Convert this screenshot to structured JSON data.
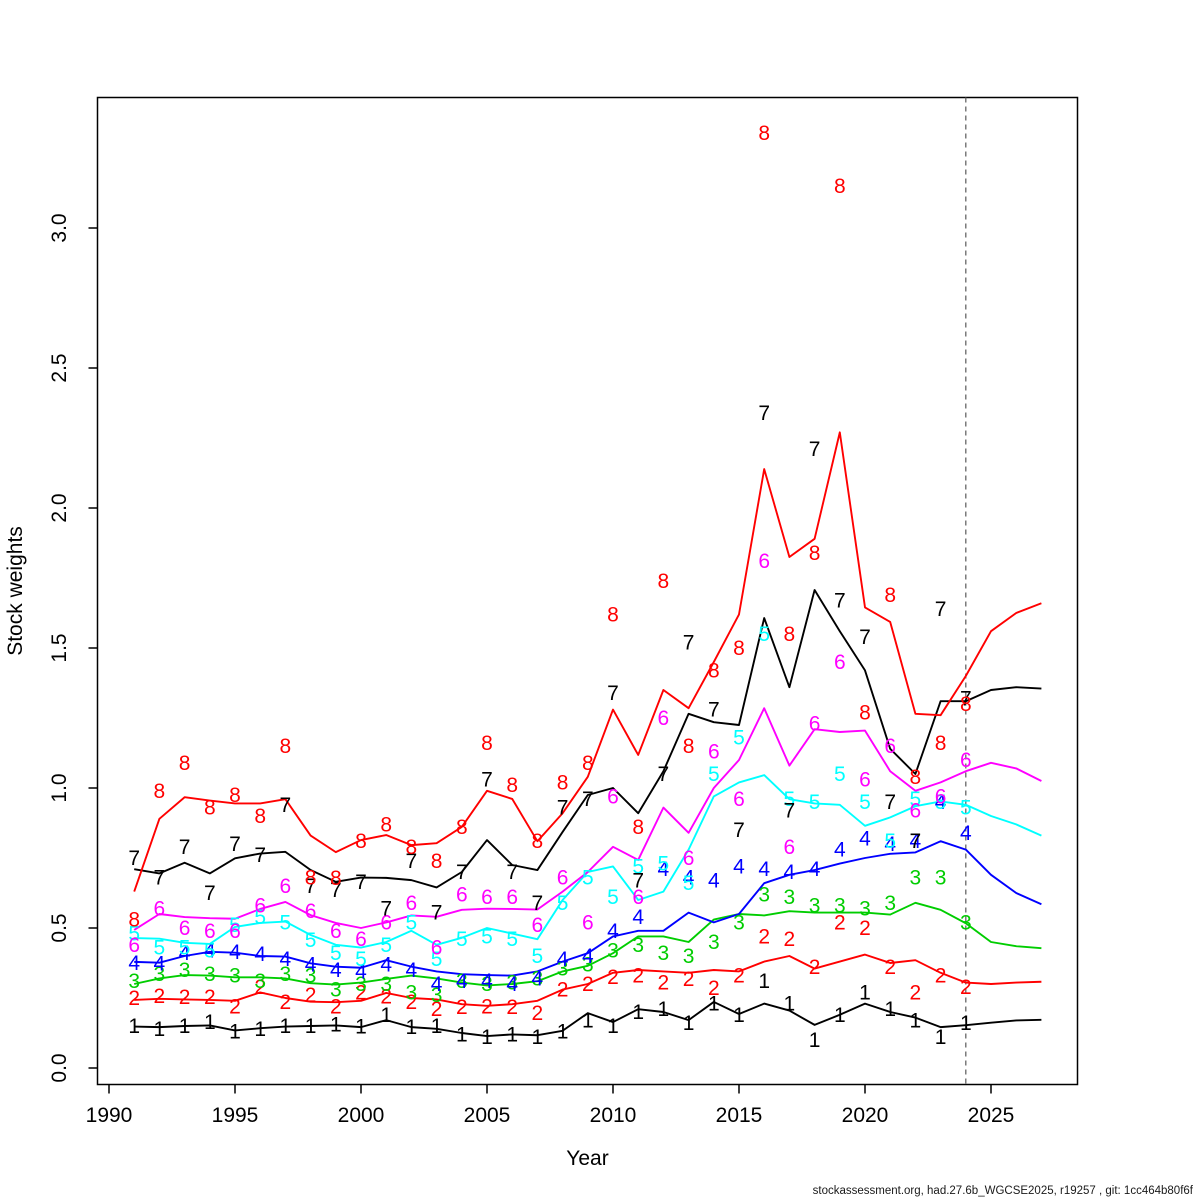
{
  "chart_data": {
    "type": "line",
    "title": "",
    "xlabel": "Year",
    "ylabel": "Stock weights",
    "x_ticks": [
      1990,
      1995,
      2000,
      2005,
      2010,
      2015,
      2020,
      2025
    ],
    "y_ticks": [
      "0.0",
      "0.5",
      "1.0",
      "1.5",
      "2.0",
      "2.5",
      "3.0"
    ],
    "xlim": [
      1989.5,
      2028.5
    ],
    "ylim": [
      -0.06,
      3.47
    ],
    "grid": false,
    "legend_position": "none",
    "forecast_divider_year": 2024,
    "divider_color": "#666666",
    "years": [
      1991,
      1992,
      1993,
      1994,
      1995,
      1996,
      1997,
      1998,
      1999,
      2000,
      2001,
      2002,
      2003,
      2004,
      2005,
      2006,
      2007,
      2008,
      2009,
      2010,
      2011,
      2012,
      2013,
      2014,
      2015,
      2016,
      2017,
      2018,
      2019,
      2020,
      2021,
      2022,
      2023,
      2024,
      2025,
      2026,
      2027
    ],
    "obs_years": [
      1991,
      1992,
      1993,
      1994,
      1995,
      1996,
      1997,
      1998,
      1999,
      2000,
      2001,
      2002,
      2003,
      2004,
      2005,
      2006,
      2007,
      2008,
      2009,
      2010,
      2011,
      2012,
      2013,
      2014,
      2015,
      2016,
      2017,
      2018,
      2019,
      2020,
      2021,
      2022,
      2023,
      2024
    ],
    "series": [
      {
        "name": "age-1",
        "label": "1",
        "color": "#000000",
        "line": [
          0.148,
          0.146,
          0.15,
          0.152,
          0.134,
          0.142,
          0.148,
          0.15,
          0.152,
          0.146,
          0.171,
          0.146,
          0.14,
          0.125,
          0.114,
          0.12,
          0.117,
          0.133,
          0.196,
          0.164,
          0.21,
          0.2,
          0.171,
          0.236,
          0.193,
          0.23,
          0.205,
          0.154,
          0.19,
          0.23,
          0.2,
          0.18,
          0.146,
          0.153,
          0.162,
          0.17,
          0.172
        ],
        "obs": [
          0.15,
          0.14,
          0.15,
          0.165,
          0.13,
          0.14,
          0.15,
          0.15,
          0.155,
          0.148,
          0.19,
          0.146,
          0.15,
          0.12,
          0.11,
          0.12,
          0.11,
          0.13,
          0.17,
          0.15,
          0.2,
          0.21,
          0.16,
          0.23,
          0.19,
          0.31,
          0.23,
          0.1,
          0.19,
          0.27,
          0.21,
          0.17,
          0.11,
          0.16
        ]
      },
      {
        "name": "age-2",
        "label": "2",
        "color": "#FF0000",
        "line": [
          0.243,
          0.247,
          0.245,
          0.243,
          0.24,
          0.27,
          0.25,
          0.237,
          0.235,
          0.24,
          0.268,
          0.25,
          0.245,
          0.228,
          0.222,
          0.228,
          0.24,
          0.28,
          0.3,
          0.34,
          0.35,
          0.345,
          0.34,
          0.35,
          0.345,
          0.38,
          0.4,
          0.355,
          0.38,
          0.405,
          0.375,
          0.385,
          0.34,
          0.305,
          0.3,
          0.305,
          0.308
        ],
        "obs": [
          0.25,
          0.257,
          0.254,
          0.254,
          0.22,
          0.29,
          0.236,
          0.26,
          0.22,
          0.27,
          0.256,
          0.235,
          0.21,
          0.218,
          0.22,
          0.217,
          0.196,
          0.28,
          0.3,
          0.325,
          0.33,
          0.305,
          0.317,
          0.285,
          0.33,
          0.47,
          0.46,
          0.36,
          0.52,
          0.5,
          0.36,
          0.27,
          0.33,
          0.29
        ]
      },
      {
        "name": "age-3",
        "label": "3",
        "color": "#00CD00",
        "line": [
          0.3,
          0.32,
          0.332,
          0.33,
          0.324,
          0.324,
          0.32,
          0.303,
          0.298,
          0.305,
          0.318,
          0.33,
          0.32,
          0.305,
          0.295,
          0.3,
          0.31,
          0.345,
          0.365,
          0.41,
          0.47,
          0.47,
          0.45,
          0.53,
          0.55,
          0.545,
          0.56,
          0.555,
          0.555,
          0.555,
          0.548,
          0.59,
          0.565,
          0.517,
          0.45,
          0.435,
          0.428
        ],
        "obs": [
          0.31,
          0.335,
          0.35,
          0.335,
          0.33,
          0.31,
          0.335,
          0.33,
          0.28,
          0.3,
          0.3,
          0.27,
          0.26,
          0.31,
          0.3,
          0.305,
          0.32,
          0.355,
          0.37,
          0.42,
          0.44,
          0.41,
          0.4,
          0.45,
          0.52,
          0.62,
          0.61,
          0.58,
          0.58,
          0.57,
          0.59,
          0.68,
          0.68,
          0.52
        ]
      },
      {
        "name": "age-4",
        "label": "4",
        "color": "#0000FF",
        "line": [
          0.379,
          0.376,
          0.4,
          0.415,
          0.412,
          0.4,
          0.398,
          0.374,
          0.362,
          0.358,
          0.385,
          0.362,
          0.345,
          0.335,
          0.332,
          0.33,
          0.345,
          0.38,
          0.41,
          0.47,
          0.49,
          0.49,
          0.555,
          0.52,
          0.55,
          0.66,
          0.69,
          0.707,
          0.73,
          0.75,
          0.765,
          0.77,
          0.81,
          0.78,
          0.69,
          0.625,
          0.585
        ],
        "obs": [
          0.375,
          0.373,
          0.41,
          0.42,
          0.415,
          0.407,
          0.39,
          0.37,
          0.35,
          0.345,
          0.37,
          0.35,
          0.3,
          0.31,
          0.31,
          0.3,
          0.32,
          0.39,
          0.4,
          0.49,
          0.54,
          0.71,
          0.68,
          0.67,
          0.72,
          0.71,
          0.7,
          0.71,
          0.78,
          0.82,
          0.8,
          0.81,
          0.95,
          0.84
        ]
      },
      {
        "name": "age-5",
        "label": "5",
        "color": "#00FFFF",
        "line": [
          0.464,
          0.462,
          0.447,
          0.443,
          0.504,
          0.518,
          0.523,
          0.475,
          0.44,
          0.43,
          0.45,
          0.49,
          0.44,
          0.465,
          0.5,
          0.48,
          0.46,
          0.6,
          0.7,
          0.72,
          0.6,
          0.63,
          0.78,
          0.97,
          1.02,
          1.046,
          0.96,
          0.945,
          0.94,
          0.865,
          0.895,
          0.935,
          0.952,
          0.94,
          0.9,
          0.87,
          0.83
        ],
        "obs": [
          0.48,
          0.43,
          0.43,
          0.42,
          0.51,
          0.54,
          0.52,
          0.457,
          0.41,
          0.39,
          0.44,
          0.52,
          0.39,
          0.46,
          0.47,
          0.46,
          0.4,
          0.59,
          0.68,
          0.61,
          0.72,
          0.73,
          0.66,
          1.05,
          1.18,
          1.55,
          0.96,
          0.95,
          1.05,
          0.95,
          0.81,
          0.96,
          0.95,
          0.93
        ]
      },
      {
        "name": "age-6",
        "label": "6",
        "color": "#FF00FF",
        "line": [
          0.493,
          0.55,
          0.539,
          0.535,
          0.533,
          0.568,
          0.593,
          0.546,
          0.518,
          0.5,
          0.52,
          0.545,
          0.54,
          0.565,
          0.569,
          0.568,
          0.566,
          0.63,
          0.7,
          0.79,
          0.743,
          0.93,
          0.84,
          1.0,
          1.1,
          1.285,
          1.08,
          1.21,
          1.2,
          1.205,
          1.06,
          0.99,
          1.02,
          1.06,
          1.09,
          1.07,
          1.025
        ],
        "obs": [
          0.44,
          0.57,
          0.5,
          0.49,
          0.49,
          0.58,
          0.65,
          0.56,
          0.49,
          0.46,
          0.52,
          0.59,
          0.43,
          0.62,
          0.61,
          0.61,
          0.51,
          0.68,
          0.52,
          0.97,
          0.61,
          1.25,
          0.75,
          1.13,
          0.96,
          1.81,
          0.79,
          1.23,
          1.45,
          1.03,
          1.15,
          0.92,
          0.97,
          1.1
        ]
      },
      {
        "name": "age-7",
        "label": "7",
        "color": "#000000",
        "line": [
          0.71,
          0.695,
          0.733,
          0.695,
          0.749,
          0.766,
          0.772,
          0.707,
          0.665,
          0.68,
          0.679,
          0.671,
          0.645,
          0.7,
          0.814,
          0.725,
          0.707,
          0.843,
          0.975,
          1.0,
          0.91,
          1.06,
          1.265,
          1.235,
          1.225,
          1.607,
          1.36,
          1.707,
          1.56,
          1.42,
          1.14,
          1.05,
          1.31,
          1.31,
          1.35,
          1.36,
          1.355
        ],
        "obs": [
          0.75,
          0.68,
          0.79,
          0.625,
          0.8,
          0.76,
          0.94,
          0.65,
          0.635,
          0.665,
          0.57,
          0.74,
          0.555,
          0.7,
          1.03,
          0.7,
          0.59,
          0.93,
          0.96,
          1.34,
          0.67,
          1.05,
          1.52,
          1.28,
          0.85,
          2.34,
          0.92,
          2.21,
          1.67,
          1.54,
          0.95,
          0.81,
          1.64,
          1.32
        ]
      },
      {
        "name": "age-8",
        "label": "8",
        "color": "#FF0000",
        "line": [
          0.63,
          0.89,
          0.967,
          0.955,
          0.945,
          0.945,
          0.96,
          0.83,
          0.771,
          0.814,
          0.832,
          0.796,
          0.803,
          0.861,
          0.99,
          0.961,
          0.81,
          0.91,
          1.04,
          1.28,
          1.118,
          1.35,
          1.285,
          1.45,
          1.62,
          2.139,
          1.825,
          1.89,
          2.27,
          1.645,
          1.593,
          1.265,
          1.26,
          1.4,
          1.56,
          1.625,
          1.66
        ],
        "obs": [
          0.53,
          0.99,
          1.09,
          0.93,
          0.975,
          0.9,
          1.15,
          0.68,
          0.678,
          0.81,
          0.87,
          0.79,
          0.74,
          0.86,
          1.16,
          1.01,
          0.81,
          1.02,
          1.09,
          1.62,
          0.86,
          1.74,
          1.15,
          1.42,
          1.5,
          3.34,
          1.55,
          1.84,
          3.15,
          1.27,
          1.69,
          1.04,
          1.16,
          1.3
        ]
      }
    ],
    "footer": "stockassessment.org, had.27.6b_WGCSE2025, r19257 , git: 1cc464b80f6f"
  }
}
